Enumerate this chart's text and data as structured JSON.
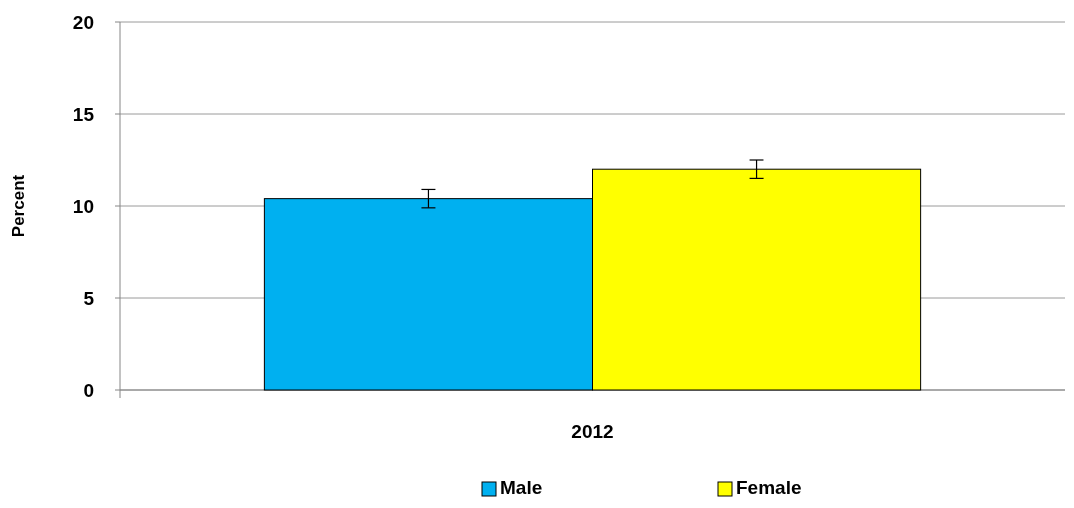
{
  "chart_data": {
    "type": "bar",
    "ylabel": "Percent",
    "categories": [
      "2012"
    ],
    "series": [
      {
        "name": "Male",
        "color": "#00b0f0",
        "values": [
          10.4
        ],
        "errors": [
          [
            9.9,
            10.9
          ]
        ]
      },
      {
        "name": "Female",
        "color": "#ffff00",
        "values": [
          12.0
        ],
        "errors": [
          [
            11.5,
            12.5
          ]
        ]
      }
    ],
    "ylim": [
      0,
      20
    ],
    "yticks": [
      0,
      5,
      10,
      15,
      20
    ],
    "grid": "y",
    "legend": "bottom"
  }
}
